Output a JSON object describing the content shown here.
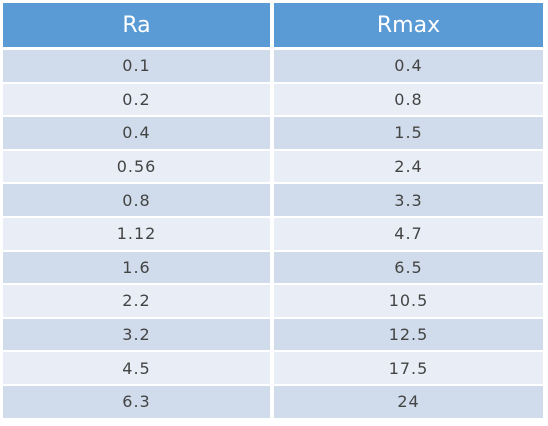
{
  "table": {
    "header": [
      "Ra",
      "Rmax"
    ],
    "rows": [
      [
        "0.1",
        "0.4"
      ],
      [
        "0.2",
        "0.8"
      ],
      [
        "0.4",
        "1.5"
      ],
      [
        "0.56",
        "2.4"
      ],
      [
        "0.8",
        "3.3"
      ],
      [
        "1.12",
        "4.7"
      ],
      [
        "1.6",
        "6.5"
      ],
      [
        "2.2",
        "10.5"
      ],
      [
        "3.2",
        "12.5"
      ],
      [
        "4.5",
        "17.5"
      ],
      [
        "6.3",
        "24"
      ]
    ]
  }
}
